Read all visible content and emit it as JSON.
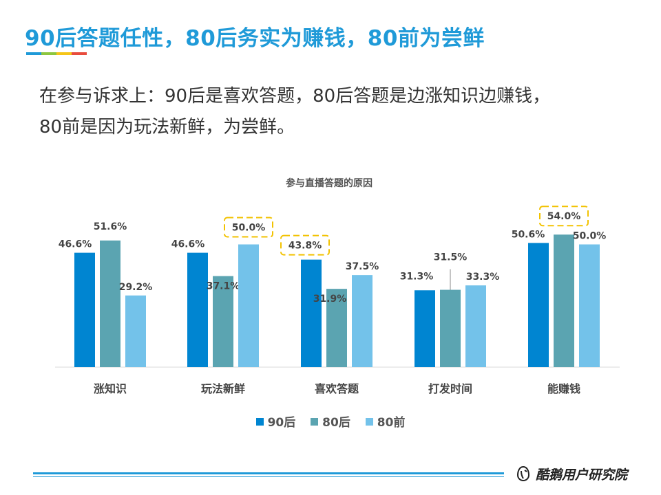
{
  "title": "90后答题任性，80后务实为赚钱，80前为尝鲜",
  "subtitle": {
    "line1": "在参与诉求上：90后是喜欢答题，80后答题是边涨知识边赚钱，",
    "line2": "80前是因为玩法新鲜，为尝鲜。"
  },
  "colors": {
    "accent": "#1f9ad8",
    "bar_strip": [
      "#1f9ad8",
      "#8dc63f",
      "#f5c518",
      "#e84c3d"
    ],
    "highlight_box": "#f2c200"
  },
  "chart_data": {
    "type": "bar",
    "title": "参与直播答题的原因",
    "categories": [
      "涨知识",
      "玩法新鲜",
      "喜欢答题",
      "打发时间",
      "能赚钱"
    ],
    "series": [
      {
        "name": "90后",
        "color": "#0085d1",
        "values": [
          46.6,
          46.6,
          43.8,
          31.3,
          50.6
        ],
        "labels": [
          "46.6%",
          "46.6%",
          "43.8%",
          "31.3%",
          "50.6%"
        ]
      },
      {
        "name": "80后",
        "color": "#5ba4b1",
        "values": [
          51.6,
          37.1,
          31.9,
          31.5,
          54.0
        ],
        "labels": [
          "51.6%",
          "37.1%",
          "31.9%",
          "31.5%",
          "54.0%"
        ]
      },
      {
        "name": "80前",
        "color": "#73c2ea",
        "values": [
          29.2,
          50.0,
          37.5,
          33.3,
          50.0
        ],
        "labels": [
          "29.2%",
          "50.0%",
          "37.5%",
          "33.3%",
          "50.0%"
        ]
      }
    ],
    "highlighted": [
      {
        "category": "玩法新鲜",
        "series": "80前"
      },
      {
        "category": "喜欢答题",
        "series": "90后"
      },
      {
        "category": "能赚钱",
        "series": "80后"
      }
    ],
    "ylim": [
      0,
      60
    ],
    "grid": false,
    "legend_position": "bottom"
  },
  "footer": {
    "brand": "酷鹅用户研究院",
    "logo_icon": "penguin-logo-icon"
  }
}
